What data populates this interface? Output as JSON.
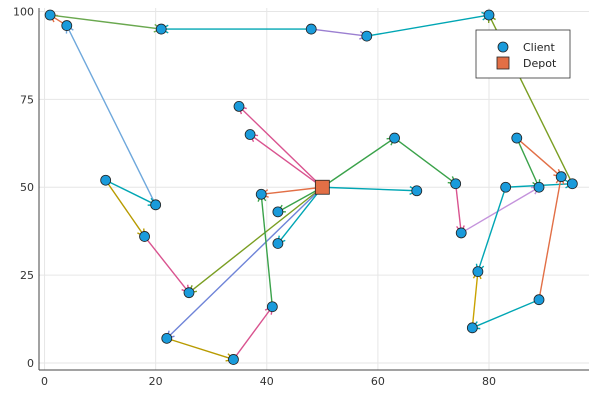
{
  "chart_data": {
    "type": "scatter",
    "title": "",
    "xlabel": "",
    "ylabel": "",
    "xlim": [
      -1,
      98
    ],
    "ylim": [
      -2,
      101
    ],
    "xticks": [
      "0",
      "20",
      "40",
      "60",
      "80"
    ],
    "xtick_values": [
      0,
      20,
      40,
      60,
      80
    ],
    "yticks": [
      "0",
      "25",
      "50",
      "75",
      "100"
    ],
    "ytick_values": [
      0,
      25,
      50,
      75,
      100
    ],
    "grid": true,
    "legend_position": "top-right",
    "series": [
      {
        "name": "Client",
        "marker": "circle",
        "color": "#1a9bdb",
        "points": [
          [
            1,
            99
          ],
          [
            4,
            96
          ],
          [
            21,
            95
          ],
          [
            48,
            95
          ],
          [
            58,
            93
          ],
          [
            80,
            99
          ],
          [
            35,
            73
          ],
          [
            37,
            65
          ],
          [
            63,
            64
          ],
          [
            11,
            52
          ],
          [
            20,
            45
          ],
          [
            18,
            36
          ],
          [
            26,
            20
          ],
          [
            22,
            7
          ],
          [
            34,
            1
          ],
          [
            41,
            16
          ],
          [
            39,
            48
          ],
          [
            42,
            43
          ],
          [
            42,
            34
          ],
          [
            67,
            49
          ],
          [
            74,
            51
          ],
          [
            75,
            37
          ],
          [
            78,
            26
          ],
          [
            77,
            10
          ],
          [
            85,
            64
          ],
          [
            83,
            50
          ],
          [
            89,
            50
          ],
          [
            93,
            53
          ],
          [
            95,
            51
          ],
          [
            89,
            18
          ]
        ]
      },
      {
        "name": "Depot",
        "marker": "square",
        "color": "#e26f46",
        "points": [
          [
            50,
            50
          ]
        ]
      }
    ],
    "routes": [
      {
        "color": "#e26f46",
        "path": [
          [
            4,
            96
          ],
          [
            1,
            99
          ]
        ]
      },
      {
        "color": "#6fa8dc",
        "path": [
          [
            20,
            45
          ],
          [
            4,
            96
          ]
        ]
      },
      {
        "color": "#6aa84f",
        "path": [
          [
            1,
            99
          ],
          [
            21,
            95
          ]
        ]
      },
      {
        "color": "#00a6b4",
        "path": [
          [
            48,
            95
          ],
          [
            21,
            95
          ]
        ]
      },
      {
        "color": "#9b7fd1",
        "path": [
          [
            48,
            95
          ],
          [
            58,
            93
          ]
        ]
      },
      {
        "color": "#00a6b4",
        "path": [
          [
            58,
            93
          ],
          [
            80,
            99
          ]
        ]
      },
      {
        "color": "#7a9e22",
        "path": [
          [
            95,
            51
          ],
          [
            80,
            99
          ]
        ]
      },
      {
        "color": "#d9538f",
        "path": [
          [
            50,
            50
          ],
          [
            35,
            73
          ]
        ]
      },
      {
        "color": "#d9538f",
        "path": [
          [
            50,
            50
          ],
          [
            37,
            65
          ]
        ]
      },
      {
        "color": "#3aa24a",
        "path": [
          [
            50,
            50
          ],
          [
            63,
            64
          ]
        ]
      },
      {
        "color": "#3aa24a",
        "path": [
          [
            63,
            64
          ],
          [
            74,
            51
          ]
        ]
      },
      {
        "color": "#00a6b4",
        "path": [
          [
            50,
            50
          ],
          [
            67,
            49
          ]
        ]
      },
      {
        "color": "#e26f46",
        "path": [
          [
            50,
            50
          ],
          [
            39,
            48
          ]
        ]
      },
      {
        "color": "#3aa24a",
        "path": [
          [
            50,
            50
          ],
          [
            42,
            43
          ]
        ]
      },
      {
        "color": "#00a6b4",
        "path": [
          [
            50,
            50
          ],
          [
            42,
            34
          ]
        ]
      },
      {
        "color": "#7a9e22",
        "path": [
          [
            50,
            50
          ],
          [
            26,
            20
          ]
        ]
      },
      {
        "color": "#6f84d8",
        "path": [
          [
            50,
            50
          ],
          [
            22,
            7
          ]
        ]
      },
      {
        "color": "#00a6b4",
        "path": [
          [
            11,
            52
          ],
          [
            20,
            45
          ]
        ]
      },
      {
        "color": "#b89b00",
        "path": [
          [
            11,
            52
          ],
          [
            18,
            36
          ]
        ]
      },
      {
        "color": "#d9538f",
        "path": [
          [
            18,
            36
          ],
          [
            26,
            20
          ]
        ]
      },
      {
        "color": "#b89b00",
        "path": [
          [
            22,
            7
          ],
          [
            34,
            1
          ]
        ]
      },
      {
        "color": "#d9538f",
        "path": [
          [
            34,
            1
          ],
          [
            41,
            16
          ]
        ]
      },
      {
        "color": "#3aa24a",
        "path": [
          [
            41,
            16
          ],
          [
            39,
            48
          ]
        ]
      },
      {
        "color": "#d9538f",
        "path": [
          [
            74,
            51
          ],
          [
            75,
            37
          ]
        ]
      },
      {
        "color": "#c493dc",
        "path": [
          [
            75,
            37
          ],
          [
            89,
            50
          ]
        ]
      },
      {
        "color": "#3aa24a",
        "path": [
          [
            85,
            64
          ],
          [
            89,
            50
          ]
        ]
      },
      {
        "color": "#e26f46",
        "path": [
          [
            85,
            64
          ],
          [
            93,
            53
          ]
        ]
      },
      {
        "color": "#00a6b4",
        "path": [
          [
            83,
            50
          ],
          [
            95,
            51
          ]
        ]
      },
      {
        "color": "#00a6b4",
        "path": [
          [
            83,
            50
          ],
          [
            78,
            26
          ]
        ]
      },
      {
        "color": "#c9a200",
        "path": [
          [
            77,
            10
          ],
          [
            78,
            26
          ]
        ]
      },
      {
        "color": "#00a6b4",
        "path": [
          [
            89,
            18
          ],
          [
            77,
            10
          ]
        ]
      },
      {
        "color": "#e26f46",
        "path": [
          [
            89,
            18
          ],
          [
            93,
            53
          ]
        ]
      }
    ]
  },
  "legend": {
    "client_label": "Client",
    "depot_label": "Depot"
  }
}
